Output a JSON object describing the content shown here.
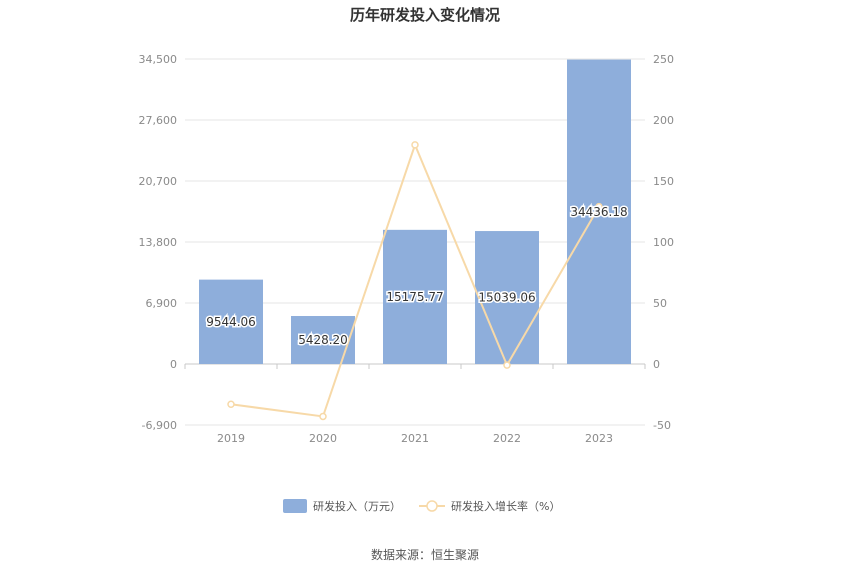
{
  "chart_data": {
    "type": "bar",
    "title": "历年研发投入变化情况",
    "categories": [
      "2019",
      "2020",
      "2021",
      "2022",
      "2023"
    ],
    "series": [
      {
        "name": "研发投入（万元）",
        "type": "bar",
        "axis": "left",
        "values": [
          9544.06,
          5428.2,
          15175.77,
          15039.06,
          34436.18
        ],
        "labels": [
          "9544.06",
          "5428.20",
          "15175.77",
          "15039.06",
          "34436.18"
        ],
        "color": "#8eaedb"
      },
      {
        "name": "研发投入增长率（%）",
        "type": "line",
        "axis": "right",
        "values": [
          -33,
          -43,
          179.6,
          -0.9,
          129
        ],
        "color": "#f7d9a8"
      }
    ],
    "y_left": {
      "range": [
        -6900,
        34500
      ],
      "ticks": [
        "34,500",
        "27,600",
        "20,700",
        "13,800",
        "6,900",
        "0",
        "-6,900"
      ]
    },
    "y_right": {
      "range": [
        -50,
        250
      ],
      "ticks": [
        "250",
        "200",
        "150",
        "100",
        "50",
        "0",
        "-50"
      ]
    },
    "grid": true,
    "legend_position": "bottom"
  },
  "source_text": "数据来源：恒生聚源"
}
